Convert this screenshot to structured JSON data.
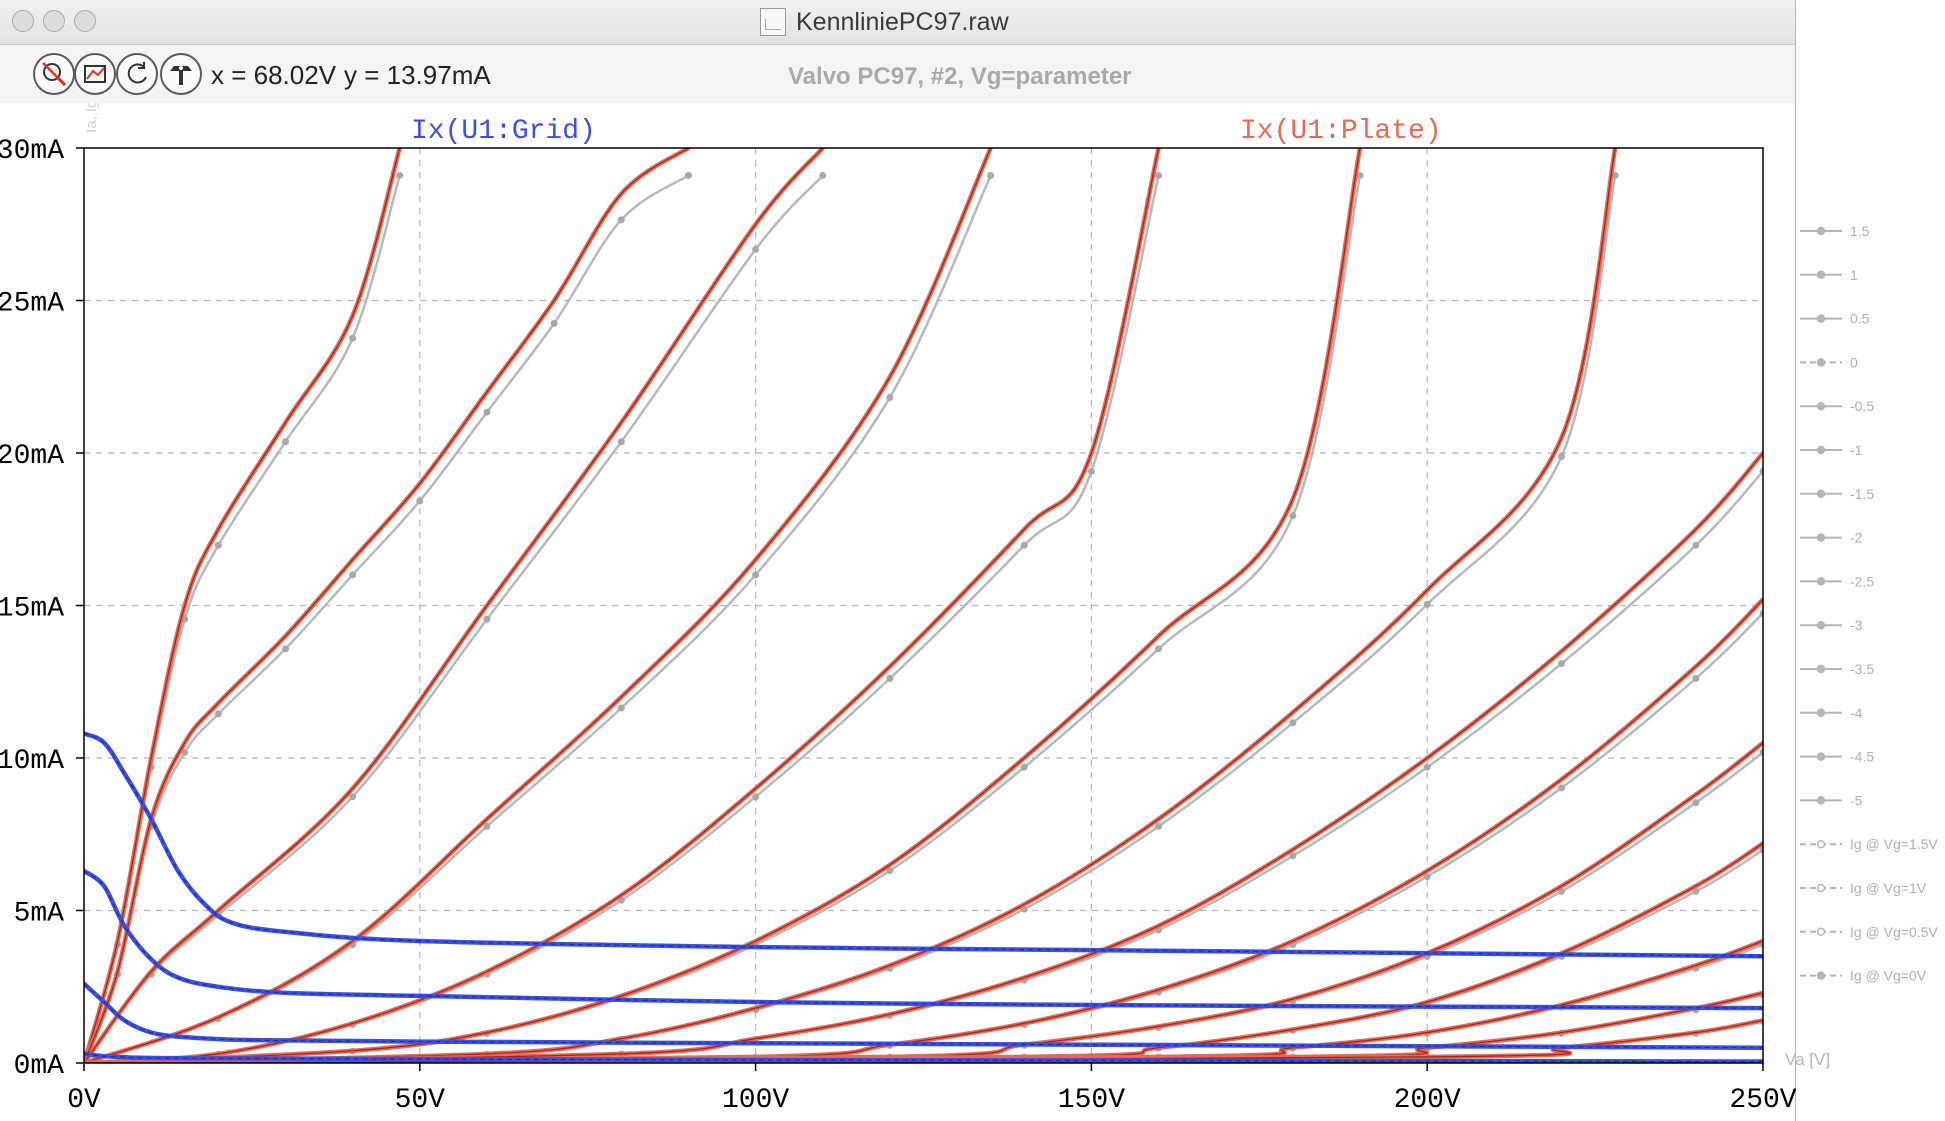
{
  "window": {
    "title": "KennliniePC97.raw"
  },
  "toolbar": {
    "cursor_x": "x = 68.02V",
    "cursor_y": "y = 13.97mA",
    "caption": "Valvo PC97, #2, Vg=parameter",
    "buttons": [
      "zoom-reset",
      "autoscale",
      "zoom-back",
      "cursor-probe"
    ]
  },
  "colors": {
    "plate": "#e46a58",
    "plate_dark": "#a52316",
    "grid_current": "#3b4fe0",
    "measured": "#b8b8b8",
    "axis": "#000000",
    "grid": "#b5b5b5"
  },
  "chart_data": {
    "type": "line",
    "x_axis": {
      "range": [
        0,
        250
      ],
      "ticks": [
        "0V",
        "50V",
        "100V",
        "150V",
        "200V",
        "250V"
      ],
      "tick_values": [
        0,
        50,
        100,
        150,
        200,
        250
      ]
    },
    "y_axis": {
      "range": [
        0,
        30
      ],
      "ticks": [
        "0mA",
        "5mA",
        "10mA",
        "15mA",
        "20mA",
        "25mA",
        "30mA"
      ],
      "tick_values": [
        0,
        5,
        10,
        15,
        20,
        25,
        30
      ],
      "ghost_label": "Ia, Ig [mA]"
    },
    "x_unit_label": "Va [V]",
    "grid": true,
    "trace_labels": {
      "grid": "Ix(U1:Grid)",
      "plate": "Ix(U1:Plate)"
    },
    "legend": {
      "position": "right",
      "entries": [
        "1.5",
        "1",
        "0.5",
        "0",
        "-0.5",
        "-1",
        "-1.5",
        "-2",
        "-2.5",
        "-3",
        "-3.5",
        "-4",
        "-4.5",
        "-5",
        "Ig @ Vg=1.5V",
        "Ig @ Vg=1V",
        "Ig @ Vg=0.5V",
        "Ig @ Vg=0V"
      ]
    },
    "plate_series": [
      {
        "vg": 1.5,
        "x": [
          0,
          5,
          10,
          15,
          20,
          30,
          40,
          47
        ],
        "y": [
          0,
          4,
          10,
          15,
          17.5,
          21,
          24.5,
          30
        ]
      },
      {
        "vg": 1,
        "x": [
          0,
          5,
          10,
          15,
          20,
          30,
          40,
          50,
          60,
          70,
          80,
          90
        ],
        "y": [
          0,
          3,
          8,
          10.5,
          11.8,
          14,
          16.5,
          19,
          22,
          25,
          28.5,
          30
        ]
      },
      {
        "vg": 0.5,
        "x": [
          0,
          10,
          20,
          40,
          60,
          80,
          100,
          110
        ],
        "y": [
          0,
          3,
          5,
          9,
          15,
          21,
          27.5,
          30
        ]
      },
      {
        "vg": 0,
        "x": [
          0,
          20,
          40,
          60,
          80,
          100,
          120,
          135
        ],
        "y": [
          0,
          1.5,
          4,
          8,
          12,
          16.5,
          22.5,
          30
        ]
      },
      {
        "vg": -0.5,
        "x": [
          0,
          20,
          40,
          60,
          80,
          100,
          120,
          140,
          150,
          160
        ],
        "y": [
          0,
          0.3,
          1.3,
          3,
          5.5,
          9,
          13,
          17.5,
          20,
          30
        ]
      },
      {
        "vg": -1,
        "x": [
          0,
          40,
          60,
          80,
          100,
          120,
          140,
          160,
          180,
          190
        ],
        "y": [
          0,
          0.4,
          1,
          2.2,
          4,
          6.5,
          10,
          14,
          18.5,
          30
        ]
      },
      {
        "vg": -1.5,
        "x": [
          0,
          60,
          80,
          100,
          120,
          140,
          160,
          180,
          200,
          220,
          228
        ],
        "y": [
          0,
          0.3,
          0.8,
          1.8,
          3.2,
          5.2,
          8,
          11.5,
          15.5,
          20.5,
          30
        ]
      },
      {
        "vg": -2,
        "x": [
          0,
          80,
          100,
          120,
          140,
          160,
          180,
          200,
          220,
          240,
          250
        ],
        "y": [
          0,
          0.3,
          0.8,
          1.6,
          2.8,
          4.5,
          7,
          10,
          13.5,
          17.5,
          20
        ]
      },
      {
        "vg": -2.5,
        "x": [
          0,
          100,
          120,
          140,
          160,
          180,
          200,
          220,
          240,
          250
        ],
        "y": [
          0,
          0.2,
          0.6,
          1.3,
          2.4,
          4,
          6.3,
          9.3,
          13,
          15.2
        ]
      },
      {
        "vg": -3,
        "x": [
          0,
          120,
          140,
          160,
          180,
          200,
          220,
          240,
          250
        ],
        "y": [
          0,
          0.2,
          0.6,
          1.2,
          2.1,
          3.6,
          5.8,
          8.8,
          10.5
        ]
      },
      {
        "vg": -3.5,
        "x": [
          0,
          140,
          160,
          180,
          200,
          220,
          240,
          250
        ],
        "y": [
          0,
          0.2,
          0.5,
          1.1,
          2,
          3.6,
          5.8,
          7.2
        ]
      },
      {
        "vg": -4,
        "x": [
          0,
          160,
          180,
          200,
          220,
          240,
          250
        ],
        "y": [
          0,
          0.2,
          0.5,
          1,
          1.9,
          3.2,
          4
        ]
      },
      {
        "vg": -4.5,
        "x": [
          0,
          180,
          200,
          220,
          240,
          250
        ],
        "y": [
          0,
          0.2,
          0.5,
          1,
          1.8,
          2.3
        ]
      },
      {
        "vg": -5,
        "x": [
          0,
          200,
          220,
          240,
          250
        ],
        "y": [
          0,
          0.2,
          0.5,
          1,
          1.4
        ]
      }
    ],
    "grid_series": [
      {
        "vg": 1.5,
        "x": [
          0,
          3,
          6,
          10,
          14,
          18,
          22,
          30,
          50,
          100,
          150,
          200,
          250
        ],
        "y": [
          10.8,
          10.5,
          9.5,
          8,
          6.3,
          5.2,
          4.6,
          4.3,
          4,
          3.8,
          3.7,
          3.6,
          3.5
        ]
      },
      {
        "vg": 1,
        "x": [
          0,
          3,
          6,
          10,
          14,
          20,
          30,
          50,
          100,
          150,
          200,
          250
        ],
        "y": [
          6.3,
          5.8,
          4.5,
          3.4,
          2.8,
          2.5,
          2.3,
          2.2,
          2.0,
          1.9,
          1.85,
          1.8
        ]
      },
      {
        "vg": 0.5,
        "x": [
          0,
          3,
          6,
          10,
          15,
          25,
          50,
          100,
          150,
          200,
          250
        ],
        "y": [
          2.6,
          2.0,
          1.4,
          1.0,
          0.85,
          0.75,
          0.7,
          0.65,
          0.6,
          0.55,
          0.5
        ]
      },
      {
        "vg": 0,
        "x": [
          0,
          5,
          20,
          100,
          250
        ],
        "y": [
          0.3,
          0.2,
          0.15,
          0.1,
          0.05
        ]
      }
    ]
  }
}
